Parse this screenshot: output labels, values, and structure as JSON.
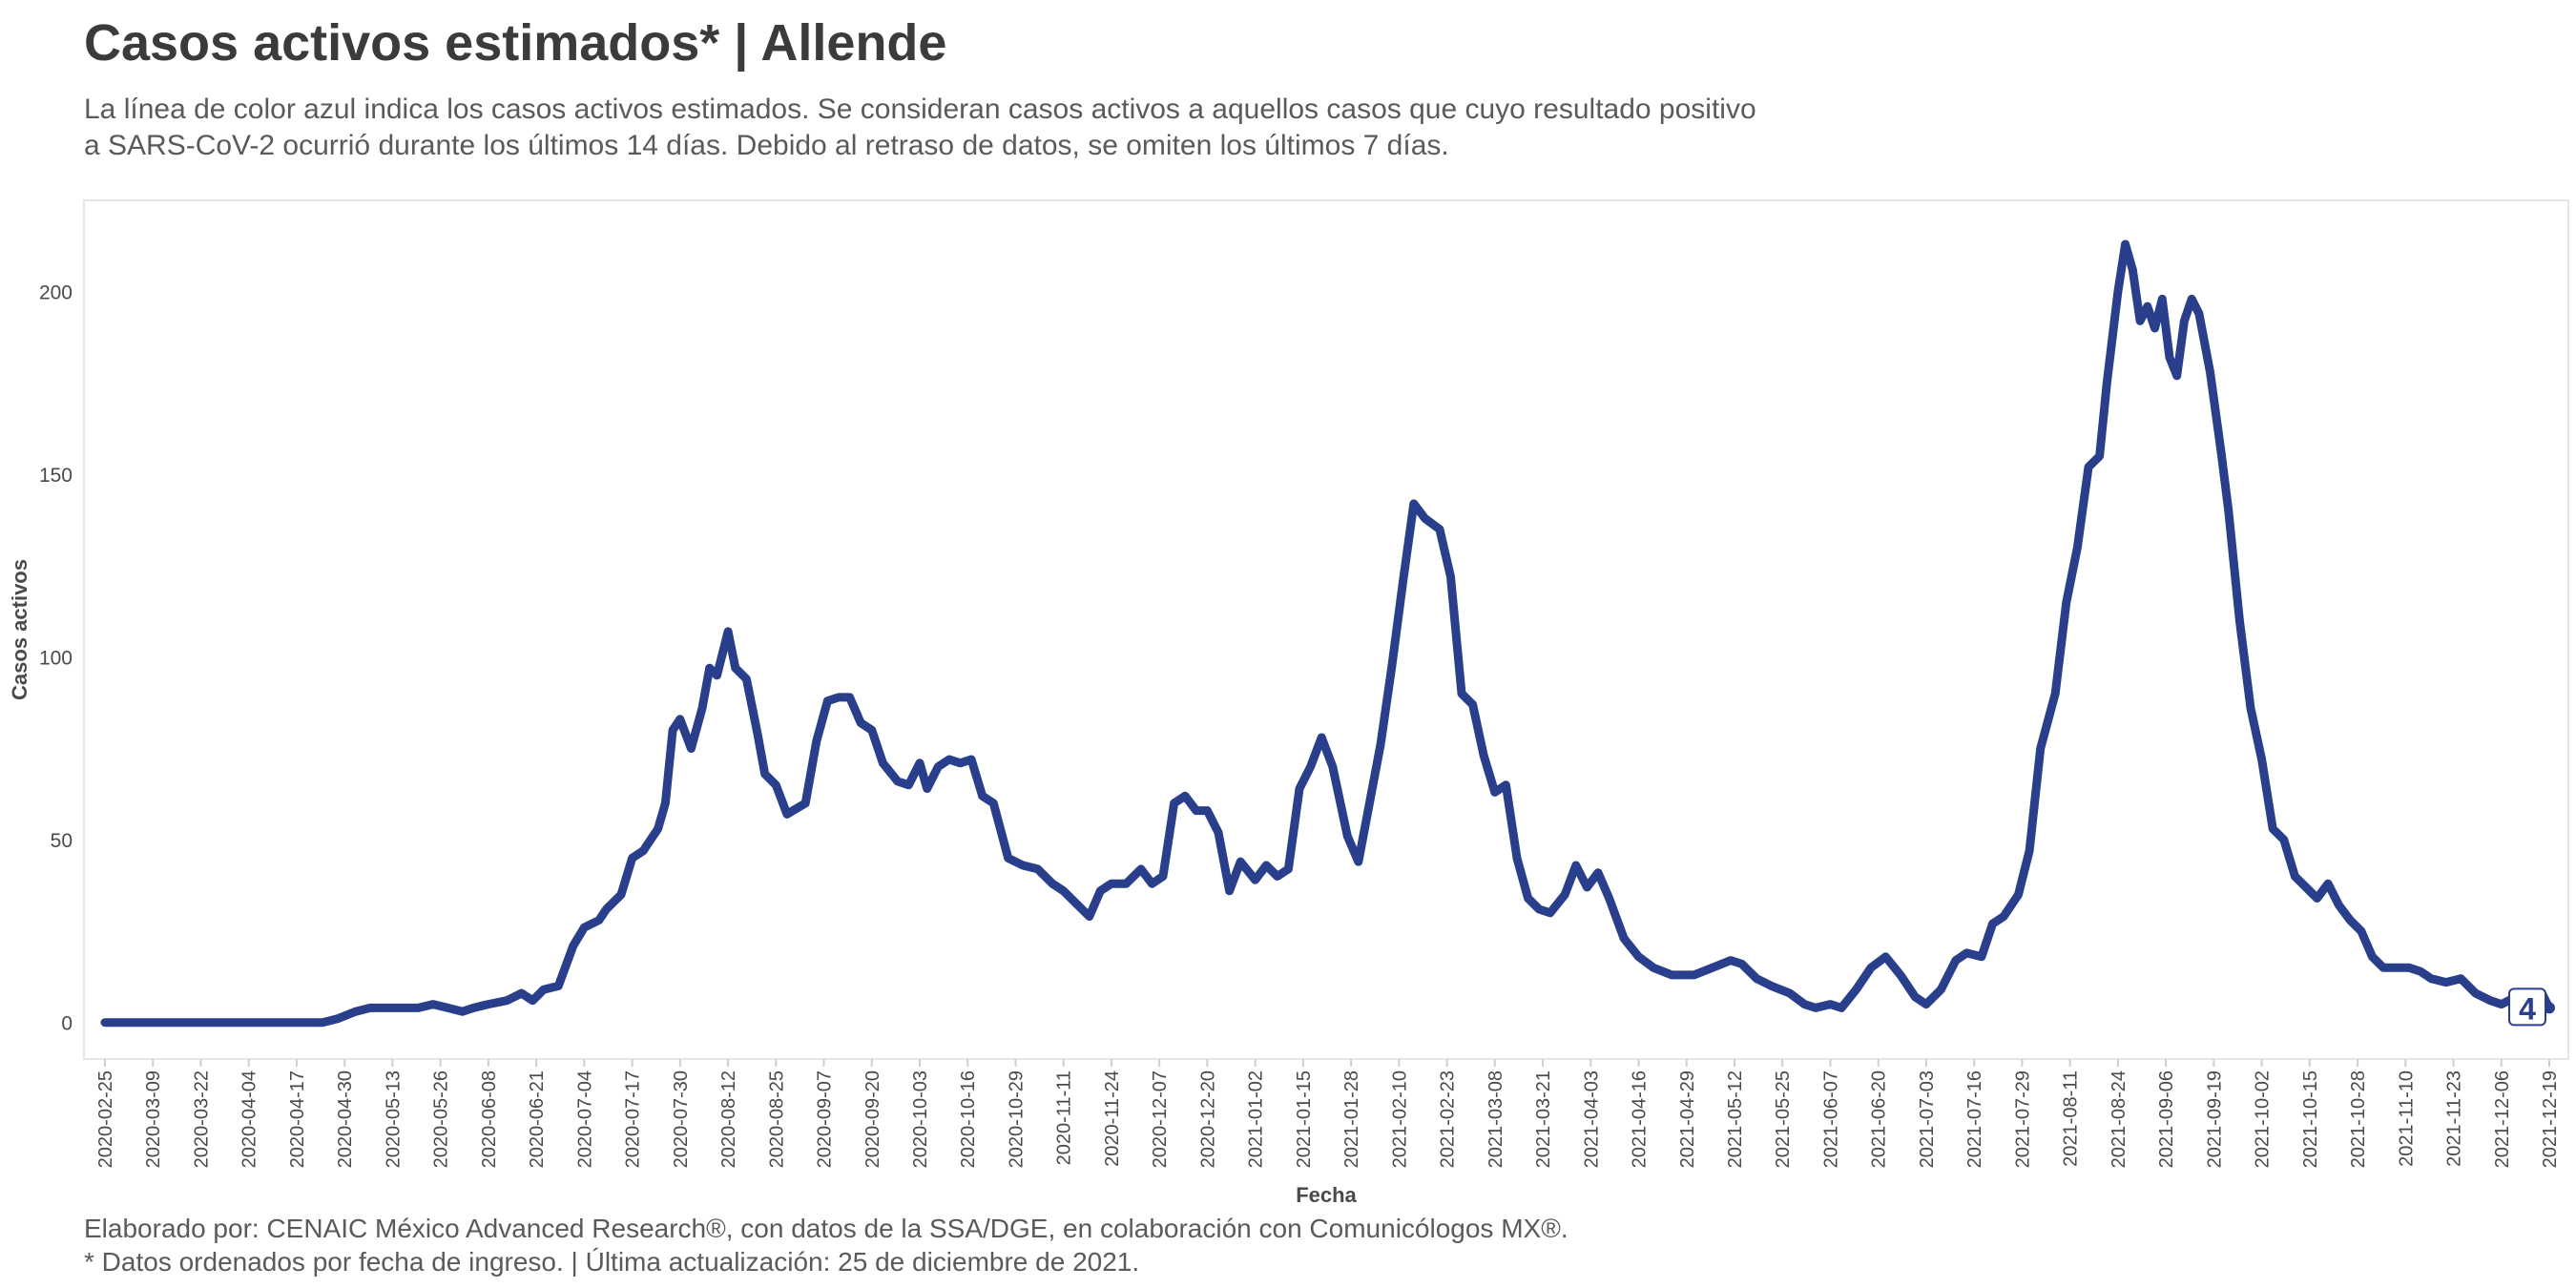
{
  "title": "Casos activos estimados* | Allende",
  "subtitle": {
    "line1": "La línea de color azul indica los casos activos estimados. Se consideran casos activos a aquellos casos que cuyo resultado positivo",
    "line2": "a SARS-CoV-2 ocurrió durante los últimos 14 días. Debido al retraso de datos, se omiten los últimos 7 días."
  },
  "caption": {
    "line1": "Elaborado por: CENAIC México Advanced Research®, con datos de la SSA/DGE, en colaboración con Comunicólogos MX®.",
    "line2": "* Datos ordenados por fecha de ingreso. | Última actualización: 25 de diciembre de 2021."
  },
  "colors": {
    "line": "#2a3f8c",
    "grid": "#ebebeb",
    "axis_text": "#4a4a4a"
  },
  "chart_data": {
    "type": "line",
    "xlabel": "Fecha",
    "ylabel": "Casos activos",
    "x_start": "2020-02-25",
    "x_end": "2021-12-19",
    "ylim": [
      -10,
      225
    ],
    "yticks": [
      0,
      50,
      100,
      150,
      200
    ],
    "xticks": [
      "2020-02-25",
      "2020-03-09",
      "2020-03-22",
      "2020-04-04",
      "2020-04-17",
      "2020-04-30",
      "2020-05-13",
      "2020-05-26",
      "2020-06-08",
      "2020-06-21",
      "2020-07-04",
      "2020-07-17",
      "2020-07-30",
      "2020-08-12",
      "2020-08-25",
      "2020-09-07",
      "2020-09-20",
      "2020-10-03",
      "2020-10-16",
      "2020-10-29",
      "2020-11-11",
      "2020-11-24",
      "2020-12-07",
      "2020-12-20",
      "2021-01-02",
      "2021-01-15",
      "2021-01-28",
      "2021-02-10",
      "2021-02-23",
      "2021-03-08",
      "2021-03-21",
      "2021-04-03",
      "2021-04-16",
      "2021-04-29",
      "2021-05-12",
      "2021-05-25",
      "2021-06-07",
      "2021-06-20",
      "2021-07-03",
      "2021-07-16",
      "2021-07-29",
      "2021-08-11",
      "2021-08-24",
      "2021-09-06",
      "2021-09-19",
      "2021-10-02",
      "2021-10-15",
      "2021-10-28",
      "2021-11-10",
      "2021-11-23",
      "2021-12-06",
      "2021-12-19"
    ],
    "grid": false,
    "end_label": "4",
    "series": [
      {
        "points": [
          [
            "2020-02-25",
            0
          ],
          [
            "2020-04-24",
            0
          ],
          [
            "2020-04-28",
            1
          ],
          [
            "2020-05-03",
            3
          ],
          [
            "2020-05-07",
            4
          ],
          [
            "2020-05-20",
            4
          ],
          [
            "2020-05-24",
            5
          ],
          [
            "2020-05-28",
            4
          ],
          [
            "2020-06-01",
            3
          ],
          [
            "2020-06-04",
            4
          ],
          [
            "2020-06-08",
            5
          ],
          [
            "2020-06-13",
            6
          ],
          [
            "2020-06-17",
            8
          ],
          [
            "2020-06-20",
            6
          ],
          [
            "2020-06-23",
            9
          ],
          [
            "2020-06-27",
            10
          ],
          [
            "2020-07-01",
            21
          ],
          [
            "2020-07-04",
            26
          ],
          [
            "2020-07-08",
            28
          ],
          [
            "2020-07-10",
            31
          ],
          [
            "2020-07-14",
            35
          ],
          [
            "2020-07-17",
            45
          ],
          [
            "2020-07-20",
            47
          ],
          [
            "2020-07-24",
            53
          ],
          [
            "2020-07-26",
            60
          ],
          [
            "2020-07-28",
            80
          ],
          [
            "2020-07-30",
            83
          ],
          [
            "2020-08-02",
            75
          ],
          [
            "2020-08-05",
            86
          ],
          [
            "2020-08-07",
            97
          ],
          [
            "2020-08-09",
            95
          ],
          [
            "2020-08-12",
            107
          ],
          [
            "2020-08-14",
            97
          ],
          [
            "2020-08-17",
            94
          ],
          [
            "2020-08-20",
            79
          ],
          [
            "2020-08-22",
            68
          ],
          [
            "2020-08-25",
            65
          ],
          [
            "2020-08-28",
            57
          ],
          [
            "2020-09-02",
            60
          ],
          [
            "2020-09-05",
            77
          ],
          [
            "2020-09-08",
            88
          ],
          [
            "2020-09-11",
            89
          ],
          [
            "2020-09-14",
            89
          ],
          [
            "2020-09-17",
            82
          ],
          [
            "2020-09-20",
            80
          ],
          [
            "2020-09-23",
            71
          ],
          [
            "2020-09-27",
            66
          ],
          [
            "2020-09-30",
            65
          ],
          [
            "2020-10-03",
            71
          ],
          [
            "2020-10-05",
            64
          ],
          [
            "2020-10-08",
            70
          ],
          [
            "2020-10-11",
            72
          ],
          [
            "2020-10-14",
            71
          ],
          [
            "2020-10-17",
            72
          ],
          [
            "2020-10-20",
            62
          ],
          [
            "2020-10-23",
            60
          ],
          [
            "2020-10-27",
            45
          ],
          [
            "2020-10-31",
            43
          ],
          [
            "2020-11-04",
            42
          ],
          [
            "2020-11-08",
            38
          ],
          [
            "2020-11-11",
            36
          ],
          [
            "2020-11-14",
            33
          ],
          [
            "2020-11-18",
            29
          ],
          [
            "2020-11-21",
            36
          ],
          [
            "2020-11-24",
            38
          ],
          [
            "2020-11-28",
            38
          ],
          [
            "2020-12-02",
            42
          ],
          [
            "2020-12-05",
            38
          ],
          [
            "2020-12-08",
            40
          ],
          [
            "2020-12-11",
            60
          ],
          [
            "2020-12-14",
            62
          ],
          [
            "2020-12-17",
            58
          ],
          [
            "2020-12-20",
            58
          ],
          [
            "2020-12-23",
            52
          ],
          [
            "2020-12-26",
            36
          ],
          [
            "2020-12-29",
            44
          ],
          [
            "2021-01-02",
            39
          ],
          [
            "2021-01-05",
            43
          ],
          [
            "2021-01-08",
            40
          ],
          [
            "2021-01-11",
            42
          ],
          [
            "2021-01-14",
            64
          ],
          [
            "2021-01-17",
            70
          ],
          [
            "2021-01-20",
            78
          ],
          [
            "2021-01-23",
            70
          ],
          [
            "2021-01-27",
            51
          ],
          [
            "2021-01-30",
            44
          ],
          [
            "2021-02-02",
            60
          ],
          [
            "2021-02-05",
            76
          ],
          [
            "2021-02-08",
            97
          ],
          [
            "2021-02-11",
            120
          ],
          [
            "2021-02-14",
            142
          ],
          [
            "2021-02-17",
            138
          ],
          [
            "2021-02-21",
            135
          ],
          [
            "2021-02-24",
            122
          ],
          [
            "2021-02-27",
            90
          ],
          [
            "2021-03-02",
            87
          ],
          [
            "2021-03-05",
            73
          ],
          [
            "2021-03-08",
            63
          ],
          [
            "2021-03-11",
            65
          ],
          [
            "2021-03-14",
            45
          ],
          [
            "2021-03-17",
            34
          ],
          [
            "2021-03-20",
            31
          ],
          [
            "2021-03-23",
            30
          ],
          [
            "2021-03-27",
            35
          ],
          [
            "2021-03-30",
            43
          ],
          [
            "2021-04-02",
            37
          ],
          [
            "2021-04-05",
            41
          ],
          [
            "2021-04-08",
            34
          ],
          [
            "2021-04-12",
            23
          ],
          [
            "2021-04-16",
            18
          ],
          [
            "2021-04-20",
            15
          ],
          [
            "2021-04-25",
            13
          ],
          [
            "2021-05-01",
            13
          ],
          [
            "2021-05-06",
            15
          ],
          [
            "2021-05-11",
            17
          ],
          [
            "2021-05-14",
            16
          ],
          [
            "2021-05-18",
            12
          ],
          [
            "2021-05-22",
            10
          ],
          [
            "2021-05-27",
            8
          ],
          [
            "2021-05-31",
            5
          ],
          [
            "2021-06-03",
            4
          ],
          [
            "2021-06-07",
            5
          ],
          [
            "2021-06-10",
            4
          ],
          [
            "2021-06-14",
            9
          ],
          [
            "2021-06-18",
            15
          ],
          [
            "2021-06-22",
            18
          ],
          [
            "2021-06-26",
            13
          ],
          [
            "2021-06-30",
            7
          ],
          [
            "2021-07-03",
            5
          ],
          [
            "2021-07-07",
            9
          ],
          [
            "2021-07-11",
            17
          ],
          [
            "2021-07-14",
            19
          ],
          [
            "2021-07-18",
            18
          ],
          [
            "2021-07-21",
            27
          ],
          [
            "2021-07-24",
            29
          ],
          [
            "2021-07-28",
            35
          ],
          [
            "2021-07-31",
            47
          ],
          [
            "2021-08-03",
            75
          ],
          [
            "2021-08-07",
            90
          ],
          [
            "2021-08-10",
            115
          ],
          [
            "2021-08-13",
            130
          ],
          [
            "2021-08-16",
            152
          ],
          [
            "2021-08-19",
            155
          ],
          [
            "2021-08-21",
            175
          ],
          [
            "2021-08-24",
            200
          ],
          [
            "2021-08-26",
            213
          ],
          [
            "2021-08-28",
            206
          ],
          [
            "2021-08-30",
            192
          ],
          [
            "2021-09-01",
            196
          ],
          [
            "2021-09-03",
            190
          ],
          [
            "2021-09-05",
            198
          ],
          [
            "2021-09-07",
            182
          ],
          [
            "2021-09-09",
            177
          ],
          [
            "2021-09-11",
            192
          ],
          [
            "2021-09-13",
            198
          ],
          [
            "2021-09-15",
            194
          ],
          [
            "2021-09-18",
            178
          ],
          [
            "2021-09-21",
            156
          ],
          [
            "2021-09-23",
            140
          ],
          [
            "2021-09-26",
            110
          ],
          [
            "2021-09-29",
            86
          ],
          [
            "2021-10-02",
            72
          ],
          [
            "2021-10-05",
            53
          ],
          [
            "2021-10-08",
            50
          ],
          [
            "2021-10-11",
            40
          ],
          [
            "2021-10-14",
            37
          ],
          [
            "2021-10-17",
            34
          ],
          [
            "2021-10-20",
            38
          ],
          [
            "2021-10-23",
            32
          ],
          [
            "2021-10-26",
            28
          ],
          [
            "2021-10-29",
            25
          ],
          [
            "2021-11-01",
            18
          ],
          [
            "2021-11-04",
            15
          ],
          [
            "2021-11-08",
            15
          ],
          [
            "2021-11-11",
            15
          ],
          [
            "2021-11-14",
            14
          ],
          [
            "2021-11-17",
            12
          ],
          [
            "2021-11-21",
            11
          ],
          [
            "2021-11-25",
            12
          ],
          [
            "2021-11-29",
            8
          ],
          [
            "2021-12-03",
            6
          ],
          [
            "2021-12-06",
            5
          ],
          [
            "2021-12-10",
            7
          ],
          [
            "2021-12-14",
            7
          ],
          [
            "2021-12-17",
            8
          ],
          [
            "2021-12-19",
            4
          ]
        ]
      }
    ]
  }
}
